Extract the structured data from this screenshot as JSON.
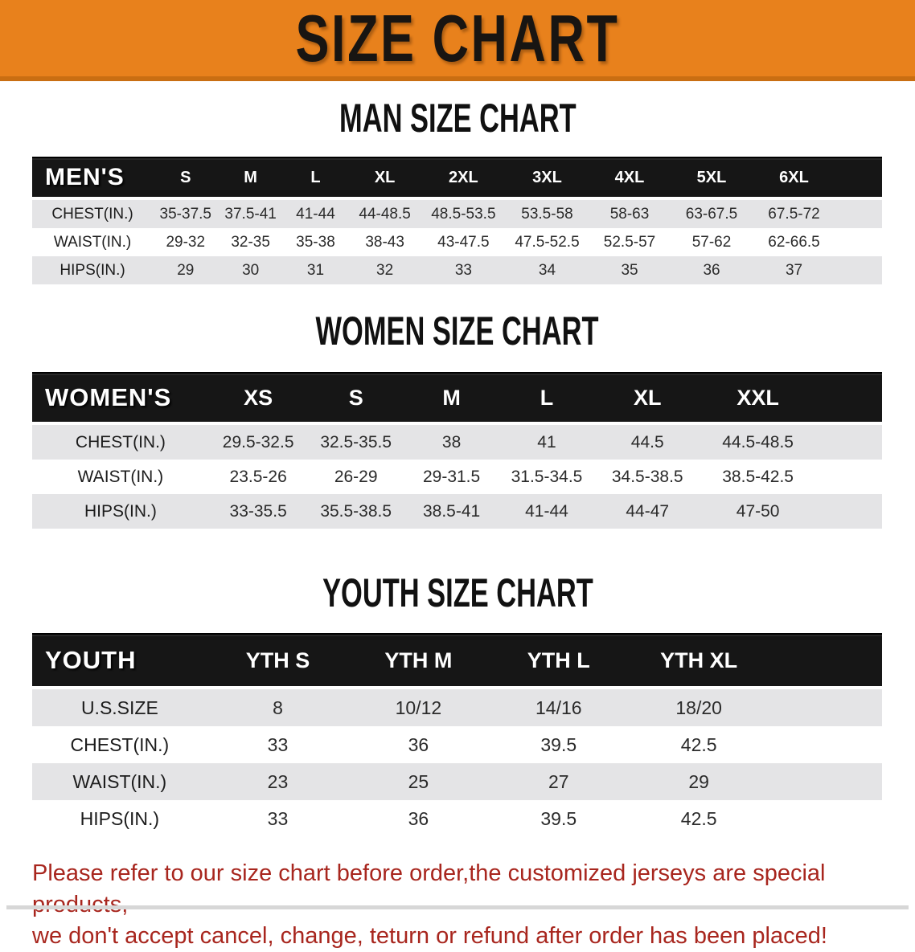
{
  "banner": {
    "title": "SIZE CHART"
  },
  "colors": {
    "banner_orange": "#E8811C",
    "banner_orange_dark": "#C96E12",
    "table_header_black": "#161616",
    "row_stripe_gray": "#E4E4E6",
    "footer_red": "#A8261E"
  },
  "sections": [
    {
      "heading": "MAN SIZE CHART",
      "table": {
        "header_label": "MEN'S",
        "columns": [
          "S",
          "M",
          "L",
          "XL",
          "2XL",
          "3XL",
          "4XL",
          "5XL",
          "6XL"
        ],
        "rows": [
          {
            "label": "CHEST(IN.)",
            "values": [
              "35-37.5",
              "37.5-41",
              "41-44",
              "44-48.5",
              "48.5-53.5",
              "53.5-58",
              "58-63",
              "63-67.5",
              "67.5-72"
            ]
          },
          {
            "label": "WAIST(IN.)",
            "values": [
              "29-32",
              "32-35",
              "35-38",
              "38-43",
              "43-47.5",
              "47.5-52.5",
              "52.5-57",
              "57-62",
              "62-66.5"
            ]
          },
          {
            "label": "HIPS(IN.)",
            "values": [
              "29",
              "30",
              "31",
              "32",
              "33",
              "34",
              "35",
              "36",
              "37"
            ]
          }
        ]
      }
    },
    {
      "heading": "WOMEN SIZE CHART",
      "table": {
        "header_label": "WOMEN'S",
        "columns": [
          "XS",
          "S",
          "M",
          "L",
          "XL",
          "XXL"
        ],
        "rows": [
          {
            "label": "CHEST(IN.)",
            "values": [
              "29.5-32.5",
              "32.5-35.5",
              "38",
              "41",
              "44.5",
              "44.5-48.5"
            ]
          },
          {
            "label": "WAIST(IN.)",
            "values": [
              "23.5-26",
              "26-29",
              "29-31.5",
              "31.5-34.5",
              "34.5-38.5",
              "38.5-42.5"
            ]
          },
          {
            "label": "HIPS(IN.)",
            "values": [
              "33-35.5",
              "35.5-38.5",
              "38.5-41",
              "41-44",
              "44-47",
              "47-50"
            ]
          }
        ]
      }
    },
    {
      "heading": "YOUTH SIZE CHART",
      "table": {
        "header_label": "YOUTH",
        "columns": [
          "YTH S",
          "YTH M",
          "YTH L",
          "YTH XL"
        ],
        "rows": [
          {
            "label": "U.S.SIZE",
            "values": [
              "8",
              "10/12",
              "14/16",
              "18/20"
            ]
          },
          {
            "label": "CHEST(IN.)",
            "values": [
              "33",
              "36",
              "39.5",
              "42.5"
            ]
          },
          {
            "label": "WAIST(IN.)",
            "values": [
              "23",
              "25",
              "27",
              "29"
            ]
          },
          {
            "label": "HIPS(IN.)",
            "values": [
              "33",
              "36",
              "39.5",
              "42.5"
            ]
          }
        ]
      }
    }
  ],
  "footer": {
    "line1": "Please refer to our size chart before order,the customized jerseys are special products,",
    "line2": "we don't accept cancel, change, teturn or refund after order has been placed!"
  },
  "chart_data": [
    {
      "type": "table",
      "title": "MAN SIZE CHART",
      "columns": [
        "MEN'S",
        "S",
        "M",
        "L",
        "XL",
        "2XL",
        "3XL",
        "4XL",
        "5XL",
        "6XL"
      ],
      "rows": [
        [
          "CHEST(IN.)",
          "35-37.5",
          "37.5-41",
          "41-44",
          "44-48.5",
          "48.5-53.5",
          "53.5-58",
          "58-63",
          "63-67.5",
          "67.5-72"
        ],
        [
          "WAIST(IN.)",
          "29-32",
          "32-35",
          "35-38",
          "38-43",
          "43-47.5",
          "47.5-52.5",
          "52.5-57",
          "57-62",
          "62-66.5"
        ],
        [
          "HIPS(IN.)",
          "29",
          "30",
          "31",
          "32",
          "33",
          "34",
          "35",
          "36",
          "37"
        ]
      ]
    },
    {
      "type": "table",
      "title": "WOMEN SIZE CHART",
      "columns": [
        "WOMEN'S",
        "XS",
        "S",
        "M",
        "L",
        "XL",
        "XXL"
      ],
      "rows": [
        [
          "CHEST(IN.)",
          "29.5-32.5",
          "32.5-35.5",
          "38",
          "41",
          "44.5",
          "44.5-48.5"
        ],
        [
          "WAIST(IN.)",
          "23.5-26",
          "26-29",
          "29-31.5",
          "31.5-34.5",
          "34.5-38.5",
          "38.5-42.5"
        ],
        [
          "HIPS(IN.)",
          "33-35.5",
          "35.5-38.5",
          "38.5-41",
          "41-44",
          "44-47",
          "47-50"
        ]
      ]
    },
    {
      "type": "table",
      "title": "YOUTH SIZE CHART",
      "columns": [
        "YOUTH",
        "YTH S",
        "YTH M",
        "YTH L",
        "YTH XL"
      ],
      "rows": [
        [
          "U.S.SIZE",
          "8",
          "10/12",
          "14/16",
          "18/20"
        ],
        [
          "CHEST(IN.)",
          "33",
          "36",
          "39.5",
          "42.5"
        ],
        [
          "WAIST(IN.)",
          "23",
          "25",
          "27",
          "29"
        ],
        [
          "HIPS(IN.)",
          "33",
          "36",
          "39.5",
          "42.5"
        ]
      ]
    }
  ]
}
